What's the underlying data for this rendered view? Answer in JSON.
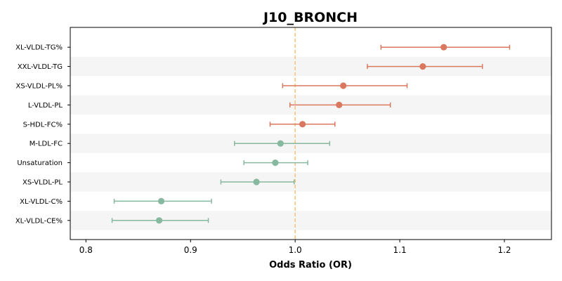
{
  "chart_data": {
    "type": "forest",
    "title": "J10_BRONCH",
    "xlabel": "Odds Ratio (OR)",
    "ylabel": "",
    "xlim": [
      0.785,
      1.245
    ],
    "xticks": [
      0.8,
      0.9,
      1.0,
      1.1,
      1.2
    ],
    "xtick_labels": [
      "0.8",
      "0.9",
      "1.0",
      "1.1",
      "1.2"
    ],
    "reference_line": 1.0,
    "grid": false,
    "alternating_row_shading": true,
    "rows": [
      {
        "label": "XL-VLDL-TG%",
        "or": 1.142,
        "ci_low": 1.082,
        "ci_high": 1.205,
        "direction": "risk"
      },
      {
        "label": "XXL-VLDL-TG",
        "or": 1.122,
        "ci_low": 1.069,
        "ci_high": 1.179,
        "direction": "risk"
      },
      {
        "label": "XS-VLDL-PL%",
        "or": 1.046,
        "ci_low": 0.988,
        "ci_high": 1.107,
        "direction": "risk"
      },
      {
        "label": "L-VLDL-PL",
        "or": 1.042,
        "ci_low": 0.995,
        "ci_high": 1.091,
        "direction": "risk"
      },
      {
        "label": "S-HDL-FC%",
        "or": 1.007,
        "ci_low": 0.976,
        "ci_high": 1.038,
        "direction": "risk"
      },
      {
        "label": "M-LDL-FC",
        "or": 0.986,
        "ci_low": 0.942,
        "ci_high": 1.033,
        "direction": "protective"
      },
      {
        "label": "Unsaturation",
        "or": 0.981,
        "ci_low": 0.951,
        "ci_high": 1.012,
        "direction": "protective"
      },
      {
        "label": "XS-VLDL-PL",
        "or": 0.963,
        "ci_low": 0.929,
        "ci_high": 0.999,
        "direction": "protective"
      },
      {
        "label": "XL-VLDL-C%",
        "or": 0.872,
        "ci_low": 0.827,
        "ci_high": 0.92,
        "direction": "protective"
      },
      {
        "label": "XL-VLDL-CE%",
        "or": 0.87,
        "ci_low": 0.825,
        "ci_high": 0.917,
        "direction": "protective"
      }
    ],
    "colors": {
      "risk": "#d9785e",
      "protective": "#87b8a0",
      "reference_line": "#f5c57f",
      "row_shade": "#f5f5f5",
      "axes": "#000000"
    }
  }
}
